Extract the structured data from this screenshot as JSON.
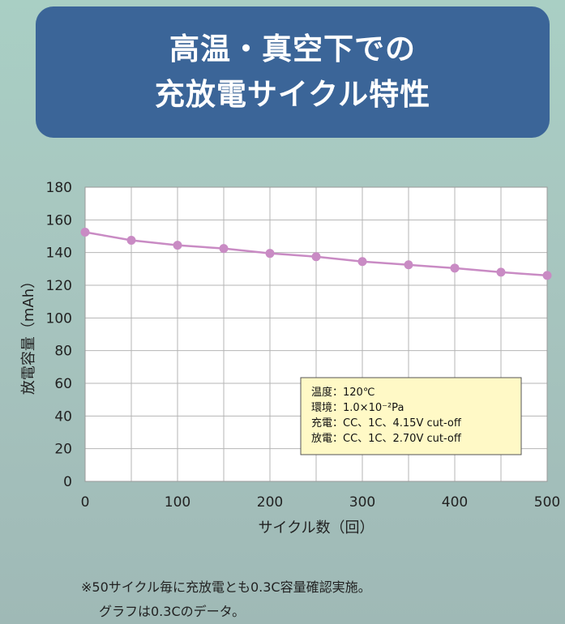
{
  "title": {
    "line1": "高温・真空下での",
    "line2": "充放電サイクル特性"
  },
  "chart_data": {
    "type": "line",
    "xlabel": "サイクル数（回）",
    "ylabel": "放電容量（mAh）",
    "xlim": [
      0,
      500
    ],
    "ylim": [
      0,
      180
    ],
    "x_ticks": [
      0,
      100,
      200,
      300,
      400,
      500
    ],
    "y_ticks": [
      0,
      20,
      40,
      60,
      80,
      100,
      120,
      140,
      160,
      180
    ],
    "x_minor_grid": [
      50,
      150,
      250,
      350,
      450
    ],
    "grid": true,
    "series": [
      {
        "color": "#c98bc4",
        "x": [
          0,
          50,
          100,
          150,
          200,
          250,
          300,
          350,
          400,
          450,
          500
        ],
        "y": [
          152.5,
          147.5,
          144.5,
          142.5,
          139.5,
          137.5,
          134.5,
          132.5,
          130.5,
          128,
          126
        ]
      }
    ],
    "annotation": {
      "lines": [
        "温度：120℃",
        "環境：1.0×10⁻²Pa",
        "充電：CC、1C、4.15V cut-off",
        "放電：CC、1C、2.70V cut-off"
      ],
      "placement": "lower-right",
      "background": "#fff9c6"
    }
  },
  "footnote": {
    "line1": "※50サイクル毎に充放電とも0.3C容量確認実施。",
    "line2": "グラフは0.3Cのデータ。"
  }
}
